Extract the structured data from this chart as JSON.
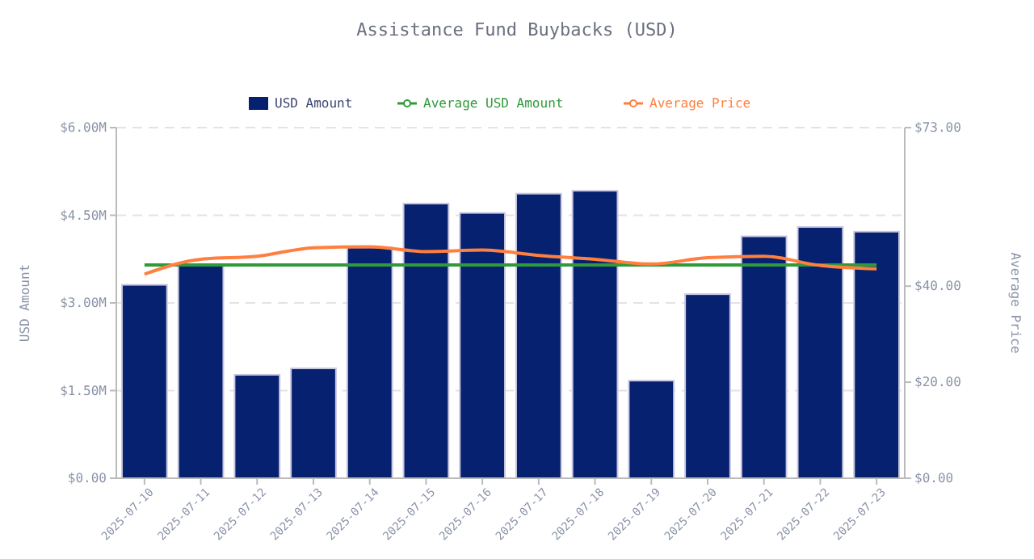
{
  "chart_data": {
    "type": "bar",
    "title": "Assistance Fund Buybacks (USD)",
    "ylabel": "USD Amount",
    "y2label": "Average Price",
    "categories": [
      "2025-07-10",
      "2025-07-11",
      "2025-07-12",
      "2025-07-13",
      "2025-07-14",
      "2025-07-15",
      "2025-07-16",
      "2025-07-17",
      "2025-07-18",
      "2025-07-19",
      "2025-07-20",
      "2025-07-21",
      "2025-07-22",
      "2025-07-23"
    ],
    "series": [
      {
        "name": "USD Amount",
        "color": "#06216f",
        "values": [
          3.31,
          3.66,
          1.77,
          1.88,
          3.95,
          4.7,
          4.54,
          4.87,
          4.92,
          1.67,
          3.15,
          4.14,
          4.3,
          4.22
        ]
      },
      {
        "name": "Average USD Amount",
        "type": "line",
        "color": "#2e9a3a",
        "values": [
          3.65,
          3.65,
          3.65,
          3.65,
          3.65,
          3.65,
          3.65,
          3.65,
          3.65,
          3.65,
          3.65,
          3.65,
          3.65,
          3.65
        ]
      },
      {
        "name": "Average Price",
        "type": "line",
        "axis": "y2",
        "color": "#ff7f3f",
        "values": [
          42.5,
          45.6,
          46.2,
          48.0,
          48.2,
          47.2,
          47.5,
          46.4,
          45.6,
          44.6,
          45.9,
          46.2,
          44.3,
          43.6
        ]
      }
    ],
    "ylim": [
      0,
      6
    ],
    "yticks": [
      {
        "value": 0,
        "label": "$0.00"
      },
      {
        "value": 1.5,
        "label": "$1.50M"
      },
      {
        "value": 3,
        "label": "$3.00M"
      },
      {
        "value": 4.5,
        "label": "$4.50M"
      },
      {
        "value": 6,
        "label": "$6.00M"
      }
    ],
    "y2lim": [
      0,
      73
    ],
    "y2ticks": [
      {
        "value": 0,
        "label": "$0.00"
      },
      {
        "value": 20,
        "label": "$20.00"
      },
      {
        "value": 40,
        "label": "$40.00"
      },
      {
        "value": 73,
        "label": "$73.00"
      }
    ],
    "grid": "y",
    "legend": "top",
    "marker": "none",
    "line_style": "solid"
  }
}
